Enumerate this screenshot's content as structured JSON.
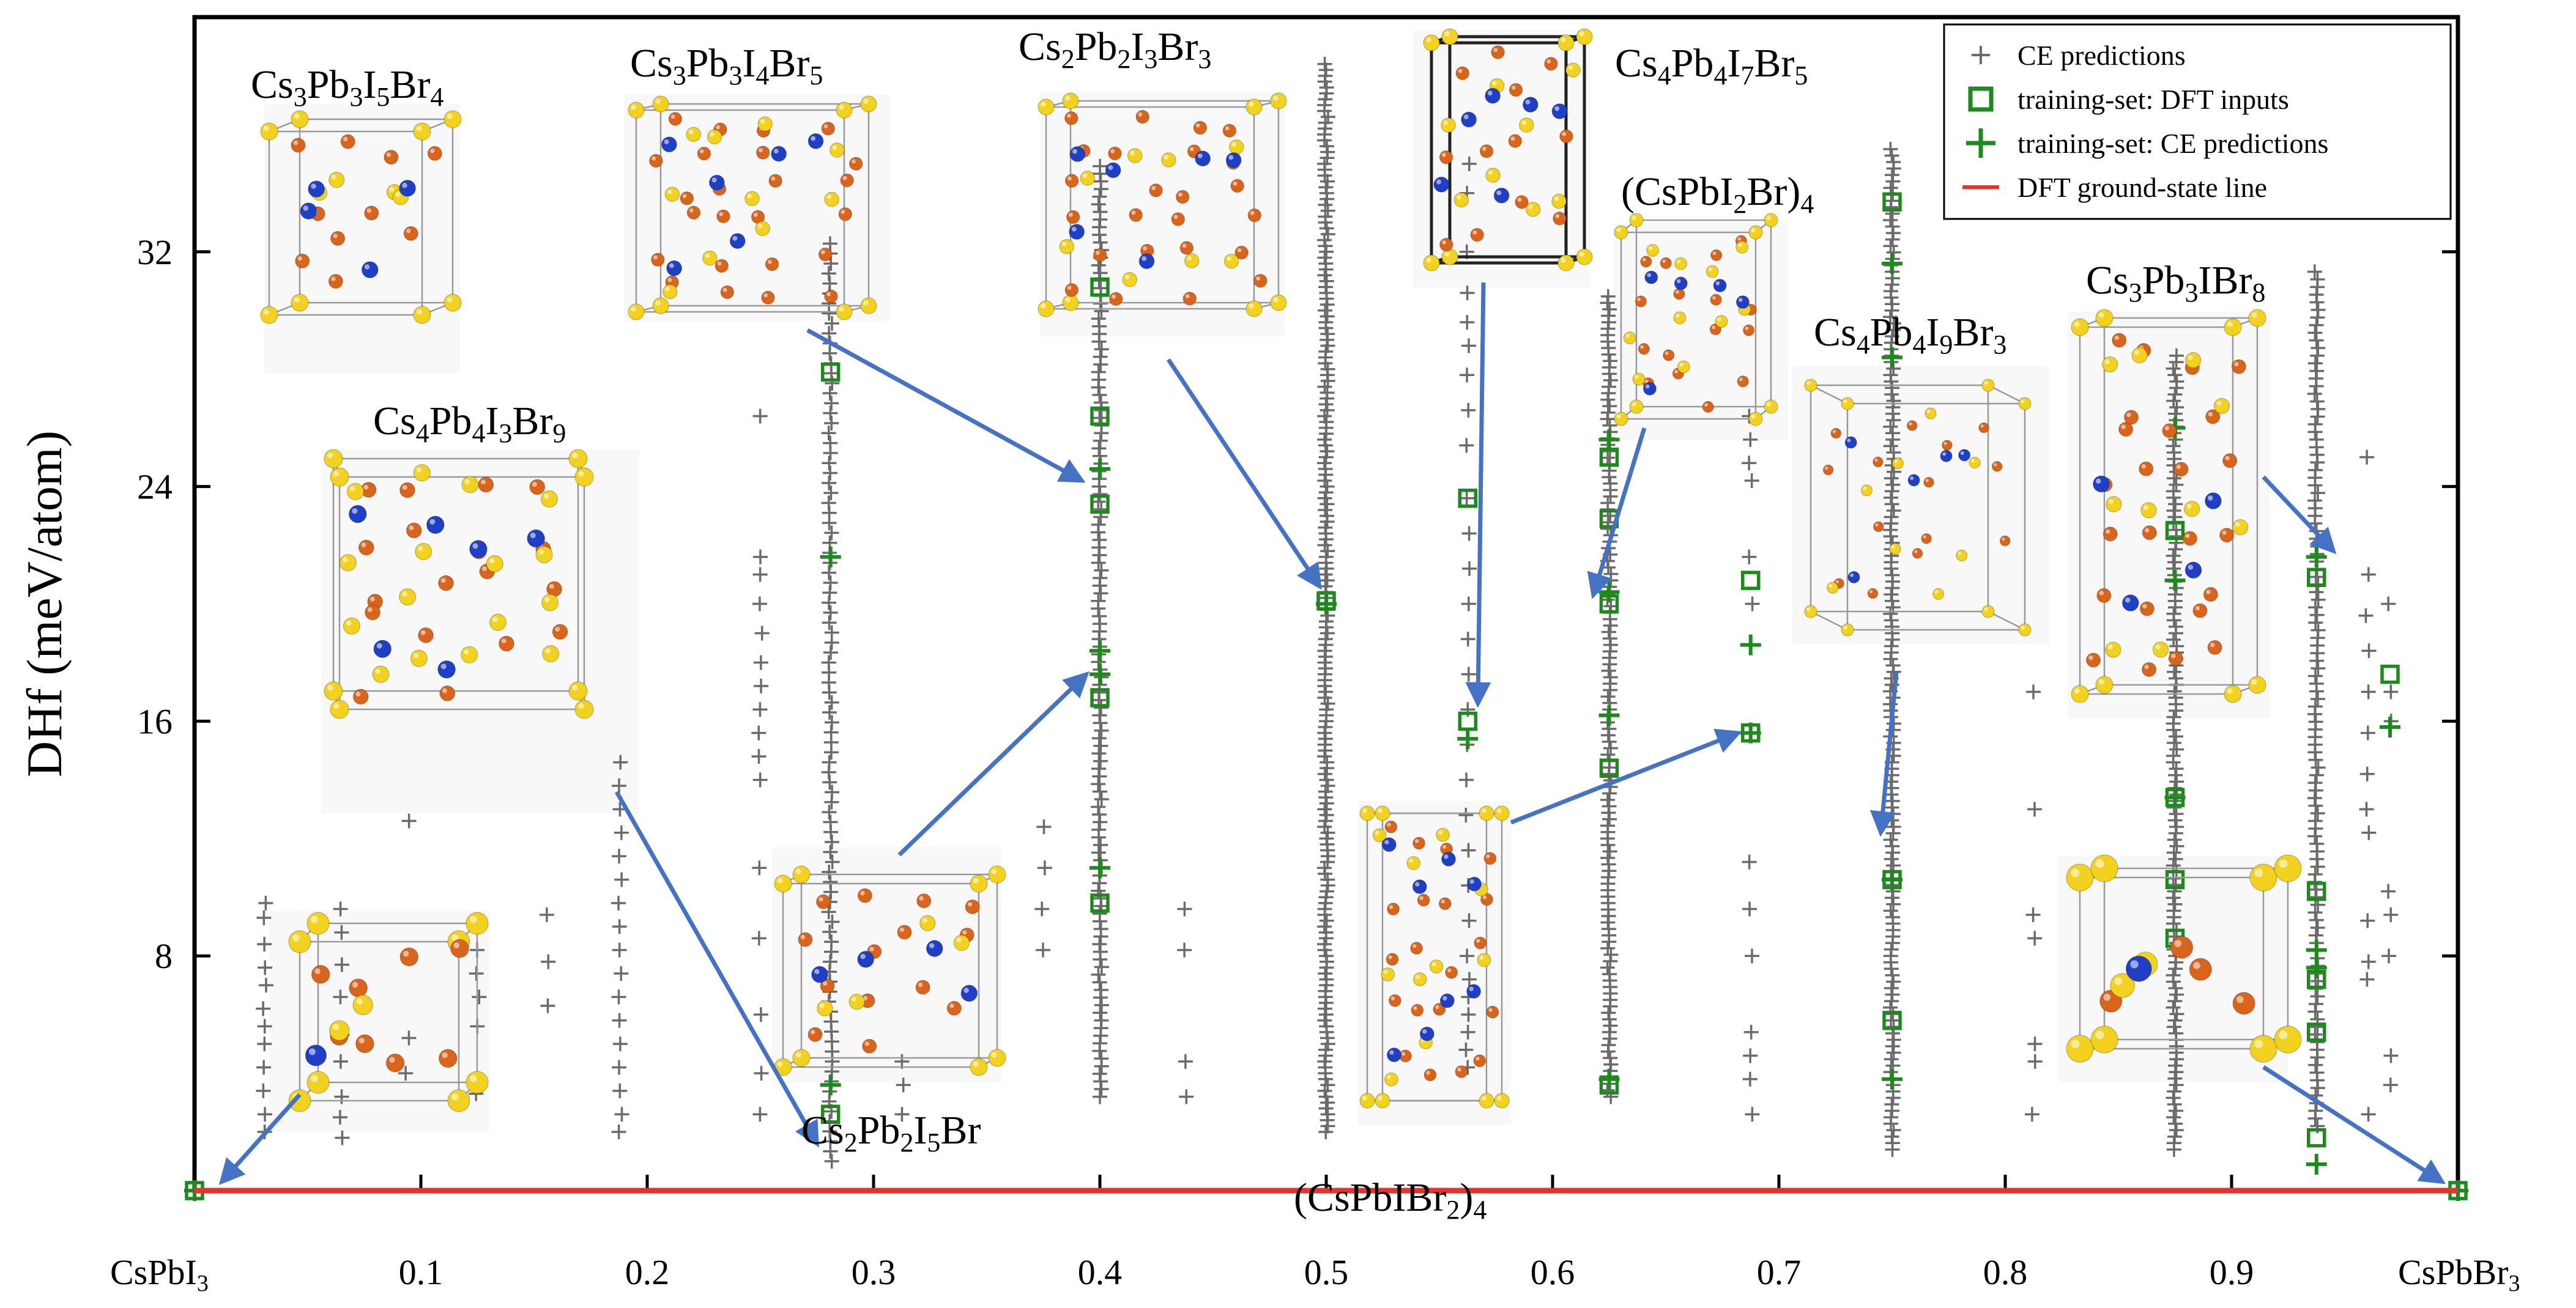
{
  "chart_data": {
    "type": "scatter",
    "ylabel": "DHf (meV/atom)",
    "xlabel": "",
    "xlim": [
      0,
      1
    ],
    "ylim": [
      0,
      40
    ],
    "x_ticks": [
      {
        "value": 0,
        "label": "CsPbI",
        "sub": "3"
      },
      {
        "value": 0.1,
        "label": "0.1",
        "sub": ""
      },
      {
        "value": 0.2,
        "label": "0.2",
        "sub": ""
      },
      {
        "value": 0.3,
        "label": "0.3",
        "sub": ""
      },
      {
        "value": 0.4,
        "label": "0.4",
        "sub": ""
      },
      {
        "value": 0.5,
        "label": "0.5",
        "sub": ""
      },
      {
        "value": 0.6,
        "label": "0.6",
        "sub": ""
      },
      {
        "value": 0.7,
        "label": "0.7",
        "sub": ""
      },
      {
        "value": 0.8,
        "label": "0.8",
        "sub": ""
      },
      {
        "value": 0.9,
        "label": "0.9",
        "sub": ""
      },
      {
        "value": 1,
        "label": "CsPbBr",
        "sub": "3"
      }
    ],
    "y_ticks": [
      8,
      16,
      24,
      32
    ],
    "legend": [
      {
        "name": "CE predictions",
        "marker": "plus",
        "color": "#6b6b6b"
      },
      {
        "name": "training-set:  DFT inputs",
        "marker": "square",
        "color": "#1e8a1e"
      },
      {
        "name": "training-set:  CE predictions",
        "marker": "plus",
        "color": "#1e8a1e"
      },
      {
        "name": "DFT ground-state  line",
        "marker": "line",
        "color": "#e8332c"
      }
    ],
    "legend_position": "top-right",
    "series": [
      {
        "name": "CE predictions",
        "color": "#6b6b6b",
        "columns": [
          {
            "x": 0.031,
            "y": [
              2.0,
              2.6,
              3.4,
              4.2,
              5.0,
              5.6,
              6.2,
              7.0,
              7.6,
              8.4,
              9.3,
              9.8
            ]
          },
          {
            "x": 0.065,
            "y": [
              1.8,
              2.5,
              3.2,
              4.4,
              5.3,
              6.6,
              7.7,
              8.8,
              9.6
            ]
          },
          {
            "x": 0.094,
            "y": [
              4.0,
              5.2,
              12.6
            ]
          },
          {
            "x": 0.125,
            "y": [
              3.3,
              5.6,
              6.6,
              7.4,
              8.2
            ]
          },
          {
            "x": 0.156,
            "y": [
              6.3,
              7.8,
              9.4
            ]
          },
          {
            "x": 0.188,
            "y": [
              2.0,
              2.6,
              3.4,
              4.2,
              5.0,
              5.8,
              6.6,
              7.4,
              8.2,
              9.0,
              9.8,
              10.6,
              11.4,
              12.2,
              13.0,
              13.8,
              14.6
            ]
          },
          {
            "x": 0.25,
            "y": [
              2.6,
              4.0,
              6.0,
              8.6,
              11.0,
              14.0,
              14.8,
              15.6,
              16.4,
              17.2,
              18.0,
              19.0,
              20.0,
              21.0,
              21.6,
              26.4
            ]
          },
          {
            "x": 0.281,
            "y": {
              "from": 1.0,
              "to": 32.5,
              "step": 0.34
            }
          },
          {
            "x": 0.3125,
            "y": [
              2.6,
              3.6,
              4.4
            ]
          },
          {
            "x": 0.375,
            "y": [
              8.2,
              9.6,
              11.0,
              12.4
            ]
          },
          {
            "x": 0.4,
            "y": {
              "from": 3.2,
              "to": 35.0,
              "step": 0.26
            }
          },
          {
            "x": 0.438,
            "y": [
              3.2,
              4.4,
              8.2,
              9.6
            ]
          },
          {
            "x": 0.5,
            "y": {
              "from": 2.0,
              "to": 38.5,
              "step": 0.2
            }
          },
          {
            "x": 0.5625,
            "y": [
              4.2,
              4.8,
              5.4,
              6.0,
              6.6,
              7.2,
              8.0,
              9.2,
              10.4,
              11.6,
              12.8,
              14.0,
              15.2,
              16.4,
              17.6,
              18.8,
              20.0,
              21.2,
              22.4,
              23.6,
              25.4,
              26.6,
              27.8,
              28.8,
              29.6,
              30.6,
              32.0,
              34.0,
              35.0
            ]
          },
          {
            "x": 0.625,
            "y": {
              "from": 3.2,
              "to": 30.5,
              "step": 0.22
            }
          },
          {
            "x": 0.6875,
            "y": [
              2.6,
              3.8,
              4.6,
              5.4,
              8.0,
              9.6,
              11.2,
              20.0,
              21.6,
              24.2,
              24.8,
              25.6,
              26.4
            ]
          },
          {
            "x": 0.75,
            "y": {
              "from": 1.4,
              "to": 35.5,
              "step": 0.22
            }
          },
          {
            "x": 0.8125,
            "y": [
              2.6,
              4.4,
              5.0,
              8.6,
              9.4,
              13.0,
              17.0
            ]
          },
          {
            "x": 0.875,
            "y": {
              "from": 1.4,
              "to": 28.5,
              "step": 0.22
            }
          },
          {
            "x": 0.9375,
            "y": {
              "from": 2.2,
              "to": 31.5,
              "step": 0.26
            }
          },
          {
            "x": 0.96,
            "y": [
              2.6,
              7.2,
              7.8,
              9.2,
              12.2,
              13.0,
              14.2,
              15.6,
              17.0,
              18.4,
              19.6,
              21.0,
              25.0
            ]
          },
          {
            "x": 0.97,
            "y": [
              3.6,
              4.6,
              8.0,
              9.4,
              10.2,
              16.0,
              17.0,
              20.0
            ]
          }
        ]
      },
      {
        "name": "training-set:  DFT inputs",
        "color": "#1e8a1e",
        "points": [
          {
            "x": 0.0,
            "y": 0.0
          },
          {
            "x": 0.281,
            "y": 2.6
          },
          {
            "x": 0.281,
            "y": 27.9
          },
          {
            "x": 0.4,
            "y": 9.8
          },
          {
            "x": 0.4,
            "y": 16.8
          },
          {
            "x": 0.4,
            "y": 23.4
          },
          {
            "x": 0.4,
            "y": 26.4
          },
          {
            "x": 0.4,
            "y": 30.8
          },
          {
            "x": 0.5,
            "y": 20.1
          },
          {
            "x": 0.5625,
            "y": 16.0
          },
          {
            "x": 0.5625,
            "y": 23.6
          },
          {
            "x": 0.625,
            "y": 3.6
          },
          {
            "x": 0.625,
            "y": 14.4
          },
          {
            "x": 0.625,
            "y": 20.0
          },
          {
            "x": 0.625,
            "y": 22.9
          },
          {
            "x": 0.625,
            "y": 25.0
          },
          {
            "x": 0.6875,
            "y": 15.6
          },
          {
            "x": 0.6875,
            "y": 20.8
          },
          {
            "x": 0.75,
            "y": 5.8
          },
          {
            "x": 0.75,
            "y": 10.6
          },
          {
            "x": 0.75,
            "y": 33.7
          },
          {
            "x": 0.875,
            "y": 8.6
          },
          {
            "x": 0.875,
            "y": 10.6
          },
          {
            "x": 0.875,
            "y": 13.4
          },
          {
            "x": 0.875,
            "y": 22.5
          },
          {
            "x": 0.9375,
            "y": 1.8
          },
          {
            "x": 0.9375,
            "y": 5.4
          },
          {
            "x": 0.9375,
            "y": 7.2
          },
          {
            "x": 0.9375,
            "y": 10.2
          },
          {
            "x": 0.9375,
            "y": 20.9
          },
          {
            "x": 0.97,
            "y": 17.6
          },
          {
            "x": 1.0,
            "y": 0.0
          }
        ]
      },
      {
        "name": "training-set:  CE predictions",
        "color": "#1e8a1e",
        "points": [
          {
            "x": 0.0,
            "y": 0.0
          },
          {
            "x": 0.281,
            "y": 3.6
          },
          {
            "x": 0.281,
            "y": 21.6
          },
          {
            "x": 0.4,
            "y": 11.0
          },
          {
            "x": 0.4,
            "y": 17.6
          },
          {
            "x": 0.4,
            "y": 18.4
          },
          {
            "x": 0.4,
            "y": 24.6
          },
          {
            "x": 0.5,
            "y": 20.0
          },
          {
            "x": 0.5625,
            "y": 15.4
          },
          {
            "x": 0.625,
            "y": 3.8
          },
          {
            "x": 0.625,
            "y": 16.2
          },
          {
            "x": 0.625,
            "y": 20.4
          },
          {
            "x": 0.625,
            "y": 25.6
          },
          {
            "x": 0.6875,
            "y": 18.6
          },
          {
            "x": 0.6875,
            "y": 15.6
          },
          {
            "x": 0.75,
            "y": 3.8
          },
          {
            "x": 0.75,
            "y": 10.6
          },
          {
            "x": 0.75,
            "y": 28.4
          },
          {
            "x": 0.75,
            "y": 31.6
          },
          {
            "x": 0.875,
            "y": 13.4
          },
          {
            "x": 0.875,
            "y": 20.8
          },
          {
            "x": 0.875,
            "y": 26.0
          },
          {
            "x": 0.9375,
            "y": 0.9
          },
          {
            "x": 0.9375,
            "y": 7.6
          },
          {
            "x": 0.9375,
            "y": 8.2
          },
          {
            "x": 0.9375,
            "y": 21.6
          },
          {
            "x": 0.97,
            "y": 15.8
          },
          {
            "x": 1.0,
            "y": 0.0
          }
        ]
      },
      {
        "name": "DFT ground-state  line",
        "color": "#e8332c",
        "x": [
          0,
          1
        ],
        "y": [
          0,
          0
        ]
      }
    ],
    "structures": [
      {
        "id": "s1",
        "formula": [
          [
            "Cs",
            ""
          ],
          [
            "3",
            1
          ],
          [
            "Pb",
            ""
          ],
          [
            "3",
            1
          ],
          [
            "I",
            ""
          ],
          [
            "5",
            1
          ],
          [
            "Br",
            ""
          ],
          [
            "4",
            1
          ]
        ]
      },
      {
        "id": "s2",
        "formula": [
          [
            "Cs",
            ""
          ],
          [
            "3",
            1
          ],
          [
            "Pb",
            ""
          ],
          [
            "3",
            1
          ],
          [
            "I",
            ""
          ],
          [
            "4",
            1
          ],
          [
            "Br",
            ""
          ],
          [
            "5",
            1
          ]
        ]
      },
      {
        "id": "s3",
        "formula": [
          [
            "Cs",
            ""
          ],
          [
            "2",
            1
          ],
          [
            "Pb",
            ""
          ],
          [
            "2",
            1
          ],
          [
            "I",
            ""
          ],
          [
            "3",
            1
          ],
          [
            "Br",
            ""
          ],
          [
            "3",
            1
          ]
        ]
      },
      {
        "id": "s4",
        "formula": [
          [
            "Cs",
            ""
          ],
          [
            "4",
            1
          ],
          [
            "Pb",
            ""
          ],
          [
            "4",
            1
          ],
          [
            "I",
            ""
          ],
          [
            "7",
            1
          ],
          [
            "Br",
            ""
          ],
          [
            "5",
            1
          ]
        ]
      },
      {
        "id": "s5",
        "formula": [
          [
            "(CsPbI",
            ""
          ],
          [
            "2",
            1
          ],
          [
            "Br)",
            ""
          ],
          [
            "4",
            1
          ]
        ]
      },
      {
        "id": "s6",
        "formula": [
          [
            "Cs",
            ""
          ],
          [
            "4",
            1
          ],
          [
            "Pb",
            ""
          ],
          [
            "4",
            1
          ],
          [
            "I",
            ""
          ],
          [
            "9",
            1
          ],
          [
            "Br",
            ""
          ],
          [
            "3",
            1
          ]
        ]
      },
      {
        "id": "s7",
        "formula": [
          [
            "Cs",
            ""
          ],
          [
            "3",
            1
          ],
          [
            "Pb",
            ""
          ],
          [
            "3",
            1
          ],
          [
            "IBr",
            ""
          ],
          [
            "8",
            1
          ]
        ]
      },
      {
        "id": "s8",
        "formula": [
          [
            "Cs",
            ""
          ],
          [
            "4",
            1
          ],
          [
            "Pb",
            ""
          ],
          [
            "4",
            1
          ],
          [
            "I",
            ""
          ],
          [
            "3",
            1
          ],
          [
            "Br",
            ""
          ],
          [
            "9",
            1
          ]
        ]
      },
      {
        "id": "s9",
        "formula": [
          [
            "Cs",
            ""
          ],
          [
            "2",
            1
          ],
          [
            "Pb",
            ""
          ],
          [
            "2",
            1
          ],
          [
            "I",
            ""
          ],
          [
            "5",
            1
          ],
          [
            "Br",
            ""
          ]
        ]
      },
      {
        "id": "s10",
        "formula": [
          [
            "(CsPbIBr",
            ""
          ],
          [
            "2",
            1
          ],
          [
            ")",
            ""
          ],
          [
            "4",
            1
          ]
        ]
      }
    ],
    "colors": {
      "ce_gray": "#6b6b6b",
      "train_green": "#1e8a1e",
      "ground_red": "#e8332c",
      "arrow_blue": "#4472c4",
      "atom_yellow": "#f2d21e",
      "atom_orange": "#d9651c",
      "atom_blue": "#1f3fc4"
    }
  }
}
